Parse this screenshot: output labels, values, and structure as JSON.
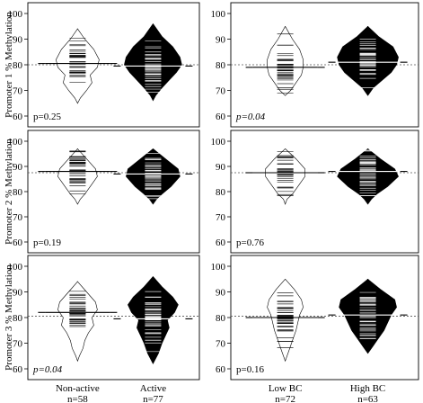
{
  "chart_data": {
    "type": "beanplot",
    "yaxis_labels": [
      "Promoter 1 % Methylation",
      "Promoter 2 % Methylation",
      "Promoter 3 % Methylation"
    ],
    "ylim": [
      60,
      100
    ],
    "yticks": [
      60,
      70,
      80,
      90,
      100
    ],
    "left_groups": [
      {
        "label": "Non-active",
        "n": "n=58"
      },
      {
        "label": "Active",
        "n": "n=77"
      }
    ],
    "right_groups": [
      {
        "label": "Low BC",
        "n": "n=72"
      },
      {
        "label": "High BC",
        "n": "n=63"
      }
    ],
    "panels": [
      {
        "row": 0,
        "col": 0,
        "pvalue": "p=0.25",
        "italic": false,
        "overall": 80,
        "means": [
          80.5,
          79.5
        ]
      },
      {
        "row": 0,
        "col": 1,
        "pvalue": "p=0.04",
        "italic": true,
        "overall": 80,
        "means": [
          79,
          81
        ]
      },
      {
        "row": 1,
        "col": 0,
        "pvalue": "p=0.19",
        "italic": false,
        "overall": 87.5,
        "means": [
          88,
          87
        ]
      },
      {
        "row": 1,
        "col": 1,
        "pvalue": "p=0.76",
        "italic": false,
        "overall": 87.5,
        "means": [
          87.5,
          88
        ]
      },
      {
        "row": 2,
        "col": 0,
        "pvalue": "p=0.04",
        "italic": true,
        "overall": 80.5,
        "means": [
          82,
          79.5
        ]
      },
      {
        "row": 2,
        "col": 1,
        "pvalue": "p=0.16",
        "italic": false,
        "overall": 80.5,
        "means": [
          80,
          81
        ]
      }
    ]
  }
}
